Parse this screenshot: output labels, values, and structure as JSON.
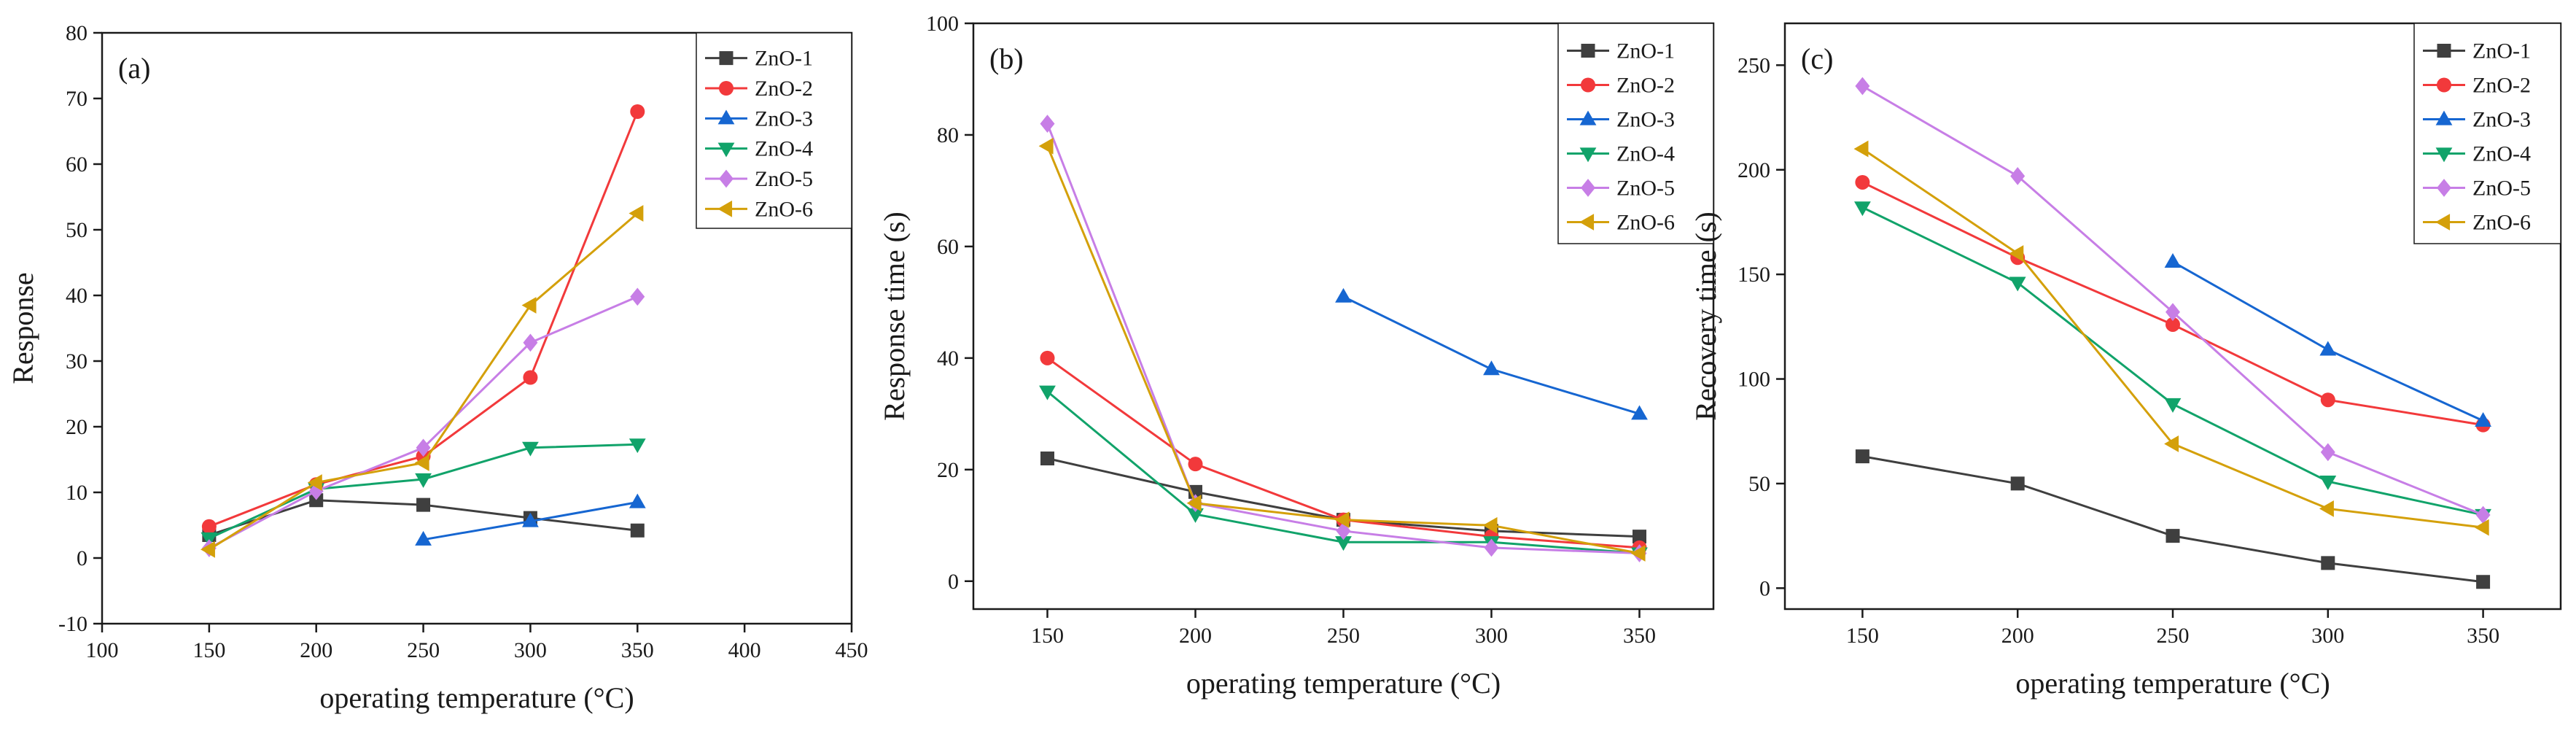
{
  "colors": {
    "ZnO-1": "#3f3f3f",
    "ZnO-2": "#f2393b",
    "ZnO-3": "#1666d1",
    "ZnO-4": "#11a36a",
    "ZnO-5": "#c77ee6",
    "ZnO-6": "#d4a00a"
  },
  "markers": {
    "ZnO-1": "square",
    "ZnO-2": "circle",
    "ZnO-3": "triangle-up",
    "ZnO-4": "triangle-down",
    "ZnO-5": "diamond",
    "ZnO-6": "triangle-left"
  },
  "chart_data": [
    {
      "type": "line",
      "panel_label": "(a)",
      "xlabel": "operating temperature (°C)",
      "ylabel": "Response",
      "xlim": [
        100,
        450
      ],
      "ylim": [
        -10,
        80
      ],
      "xticks": [
        100,
        150,
        200,
        250,
        300,
        350,
        400,
        450
      ],
      "yticks": [
        -10,
        0,
        10,
        20,
        30,
        40,
        50,
        60,
        70,
        80
      ],
      "legend_position": "top-right",
      "grid": false,
      "series": [
        {
          "name": "ZnO-1",
          "x": [
            150,
            200,
            250,
            300,
            350
          ],
          "y": [
            3.5,
            8.8,
            8.1,
            6.1,
            4.2
          ]
        },
        {
          "name": "ZnO-2",
          "x": [
            150,
            200,
            250,
            300,
            350
          ],
          "y": [
            4.8,
            11.2,
            15.5,
            27.5,
            68
          ]
        },
        {
          "name": "ZnO-3",
          "x": [
            250,
            300,
            350
          ],
          "y": [
            2.8,
            5.6,
            8.5
          ]
        },
        {
          "name": "ZnO-4",
          "x": [
            150,
            200,
            250,
            300,
            350
          ],
          "y": [
            3.0,
            10.5,
            12.0,
            16.8,
            17.3
          ]
        },
        {
          "name": "ZnO-5",
          "x": [
            150,
            200,
            250,
            300,
            350
          ],
          "y": [
            1.5,
            10.2,
            16.8,
            32.8,
            39.8
          ]
        },
        {
          "name": "ZnO-6",
          "x": [
            150,
            200,
            250,
            300,
            350
          ],
          "y": [
            1.3,
            11.5,
            14.5,
            38.5,
            52.5
          ]
        }
      ]
    },
    {
      "type": "line",
      "panel_label": "(b)",
      "xlabel": "operating temperature (°C)",
      "ylabel": "Response time (s)",
      "xlim": [
        125,
        375
      ],
      "ylim": [
        -5,
        100
      ],
      "xticks": [
        150,
        200,
        250,
        300,
        350
      ],
      "yticks": [
        0,
        20,
        40,
        60,
        80,
        100
      ],
      "legend_position": "top-right",
      "grid": false,
      "series": [
        {
          "name": "ZnO-1",
          "x": [
            150,
            200,
            250,
            300,
            350
          ],
          "y": [
            22,
            16,
            11,
            9,
            8
          ]
        },
        {
          "name": "ZnO-2",
          "x": [
            150,
            200,
            250,
            300,
            350
          ],
          "y": [
            40,
            21,
            11,
            8,
            6
          ]
        },
        {
          "name": "ZnO-3",
          "x": [
            250,
            300,
            350
          ],
          "y": [
            51,
            38,
            30
          ]
        },
        {
          "name": "ZnO-4",
          "x": [
            150,
            200,
            250,
            300,
            350
          ],
          "y": [
            34,
            12,
            7,
            7,
            5
          ]
        },
        {
          "name": "ZnO-5",
          "x": [
            150,
            200,
            250,
            300,
            350
          ],
          "y": [
            82,
            14,
            9,
            6,
            5
          ]
        },
        {
          "name": "ZnO-6",
          "x": [
            150,
            200,
            250,
            300,
            350
          ],
          "y": [
            78,
            14,
            11,
            10,
            5
          ]
        }
      ]
    },
    {
      "type": "line",
      "panel_label": "(c)",
      "xlabel": "operating temperature (°C)",
      "ylabel": "Recovery time (s)",
      "xlim": [
        125,
        375
      ],
      "ylim": [
        -10,
        270
      ],
      "xticks": [
        150,
        200,
        250,
        300,
        350
      ],
      "yticks": [
        0,
        50,
        100,
        150,
        200,
        250
      ],
      "legend_position": "top-right",
      "grid": false,
      "series": [
        {
          "name": "ZnO-1",
          "x": [
            150,
            200,
            250,
            300,
            350
          ],
          "y": [
            63,
            50,
            25,
            12,
            3
          ]
        },
        {
          "name": "ZnO-2",
          "x": [
            150,
            200,
            250,
            300,
            350
          ],
          "y": [
            194,
            158,
            126,
            90,
            78
          ]
        },
        {
          "name": "ZnO-3",
          "x": [
            250,
            300,
            350
          ],
          "y": [
            156,
            114,
            80
          ]
        },
        {
          "name": "ZnO-4",
          "x": [
            150,
            200,
            250,
            300,
            350
          ],
          "y": [
            182,
            146,
            88,
            51,
            35
          ]
        },
        {
          "name": "ZnO-5",
          "x": [
            150,
            200,
            250,
            300,
            350
          ],
          "y": [
            240,
            197,
            132,
            65,
            35
          ]
        },
        {
          "name": "ZnO-6",
          "x": [
            150,
            200,
            250,
            300,
            350
          ],
          "y": [
            210,
            160,
            69,
            38,
            29
          ]
        }
      ]
    }
  ]
}
